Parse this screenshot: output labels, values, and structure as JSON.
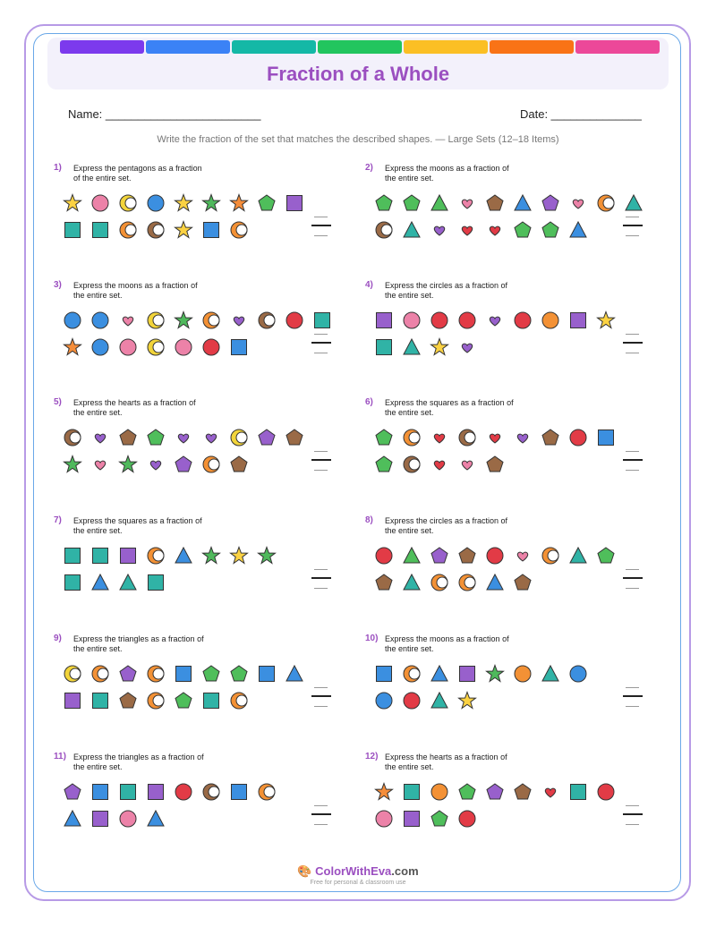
{
  "header": {
    "title": "Fraction of a Whole",
    "stripe_colors": [
      "#7c3aed",
      "#3b82f6",
      "#14b8a6",
      "#22c55e",
      "#fbbf24",
      "#f97316",
      "#ec4899"
    ]
  },
  "fields": {
    "name_label": "Name: ________________________",
    "date_label": "Date: ______________"
  },
  "instructions": "Write the fraction of the set that matches the described shapes. — Large Sets (12–18 Items)",
  "colors": {
    "star_yellow": "#fbd243",
    "star_green": "#4fb95c",
    "star_orange": "#f58d3a",
    "pink": "#ec82a8",
    "blue": "#3b8fe0",
    "red": "#e23b46",
    "orange": "#f39135",
    "yellow": "#f2d43a",
    "brown": "#9a6a46",
    "teal": "#30b3a6",
    "green": "#4fbe5b",
    "purple": "#9860cc"
  },
  "problems": [
    {
      "num": "1)",
      "text": "Express the pentagons as a fraction of the entire set.",
      "row1": [
        "star:yellow",
        "circle:pink",
        "moon:yellow",
        "circle:blue",
        "star:yellow",
        "star:green",
        "star:orange",
        "pentagon:green",
        "square:purple"
      ],
      "row2": [
        "square:teal",
        "square:teal",
        "moon:orange",
        "moon:brown",
        "star:yellow",
        "square:blue",
        "moon:orange"
      ]
    },
    {
      "num": "2)",
      "text": "Express the moons as a fraction of the entire set.",
      "row1": [
        "pentagon:green",
        "pentagon:green",
        "triangle:green",
        "heart:pink",
        "pentagon:brown",
        "triangle:blue",
        "pentagon:purple",
        "heart:pink",
        "moon:orange",
        "triangle:teal"
      ],
      "row2": [
        "moon:brown",
        "triangle:teal",
        "heart:purple",
        "heart:red",
        "heart:red",
        "pentagon:green",
        "pentagon:green",
        "triangle:blue"
      ]
    },
    {
      "num": "3)",
      "text": "Express the moons as a fraction of the entire set.",
      "row1": [
        "circle:blue",
        "circle:blue",
        "heart:pink",
        "moon:yellow",
        "star:green",
        "moon:orange",
        "heart:purple",
        "moon:brown",
        "circle:red",
        "square:teal"
      ],
      "row2": [
        "star:orange",
        "circle:blue",
        "circle:pink",
        "moon:yellow",
        "circle:pink",
        "circle:red",
        "square:blue"
      ]
    },
    {
      "num": "4)",
      "text": "Express the circles as a fraction of the entire set.",
      "row1": [
        "square:purple",
        "circle:pink",
        "circle:red",
        "circle:red",
        "heart:purple",
        "circle:red",
        "circle:orange",
        "square:purple",
        "star:yellow"
      ],
      "row2": [
        "square:teal",
        "triangle:teal",
        "star:yellow",
        "heart:purple"
      ]
    },
    {
      "num": "5)",
      "text": "Express the hearts as a fraction of the entire set.",
      "row1": [
        "moon:brown",
        "heart:purple",
        "pentagon:brown",
        "pentagon:green",
        "heart:purple",
        "heart:purple",
        "moon:yellow",
        "pentagon:purple",
        "pentagon:brown"
      ],
      "row2": [
        "star:green",
        "heart:pink",
        "star:green",
        "heart:purple",
        "pentagon:purple",
        "moon:orange",
        "pentagon:brown"
      ]
    },
    {
      "num": "6)",
      "text": "Express the squares as a fraction of the entire set.",
      "row1": [
        "pentagon:green",
        "moon:orange",
        "heart:red",
        "moon:brown",
        "heart:red",
        "heart:purple",
        "pentagon:brown",
        "circle:red",
        "square:blue"
      ],
      "row2": [
        "pentagon:green",
        "moon:brown",
        "heart:red",
        "heart:pink",
        "pentagon:brown"
      ]
    },
    {
      "num": "7)",
      "text": "Express the squares as a fraction of the entire set.",
      "row1": [
        "square:teal",
        "square:teal",
        "square:purple",
        "moon:orange",
        "triangle:blue",
        "star:green",
        "star:yellow",
        "star:green"
      ],
      "row2": [
        "square:teal",
        "triangle:blue",
        "triangle:teal",
        "square:teal"
      ]
    },
    {
      "num": "8)",
      "text": "Express the circles as a fraction of the entire set.",
      "row1": [
        "circle:red",
        "triangle:green",
        "pentagon:purple",
        "pentagon:brown",
        "circle:red",
        "heart:pink",
        "moon:orange",
        "triangle:teal",
        "pentagon:green"
      ],
      "row2": [
        "pentagon:brown",
        "triangle:teal",
        "moon:orange",
        "moon:orange",
        "triangle:blue",
        "pentagon:brown"
      ]
    },
    {
      "num": "9)",
      "text": "Express the triangles as a fraction of the entire set.",
      "row1": [
        "moon:yellow",
        "moon:orange",
        "pentagon:purple",
        "moon:orange",
        "square:blue",
        "pentagon:green",
        "pentagon:green",
        "square:blue",
        "triangle:blue"
      ],
      "row2": [
        "square:purple",
        "square:teal",
        "pentagon:brown",
        "moon:orange",
        "pentagon:green",
        "square:teal",
        "moon:orange"
      ]
    },
    {
      "num": "10)",
      "text": "Express the moons as a fraction of the entire set.",
      "row1": [
        "square:blue",
        "moon:orange",
        "triangle:blue",
        "square:purple",
        "star:green",
        "circle:orange",
        "triangle:teal",
        "circle:blue"
      ],
      "row2": [
        "circle:blue",
        "circle:red",
        "triangle:teal",
        "star:yellow"
      ]
    },
    {
      "num": "11)",
      "text": "Express the triangles as a fraction of the entire set.",
      "row1": [
        "pentagon:purple",
        "square:blue",
        "square:teal",
        "square:purple",
        "circle:red",
        "moon:brown",
        "square:blue",
        "moon:orange"
      ],
      "row2": [
        "triangle:blue",
        "square:purple",
        "circle:pink",
        "triangle:blue"
      ]
    },
    {
      "num": "12)",
      "text": "Express the hearts as a fraction of the entire set.",
      "row1": [
        "star:orange",
        "square:teal",
        "circle:orange",
        "pentagon:green",
        "pentagon:purple",
        "pentagon:brown",
        "heart:red",
        "square:teal",
        "circle:red"
      ],
      "row2": [
        "circle:pink",
        "square:purple",
        "pentagon:green",
        "circle:red"
      ]
    }
  ],
  "footer": {
    "brand_part1": "ColorWith",
    "brand_part2": "Eva",
    "brand_part3": ".com",
    "tagline": "Free for personal & classroom use",
    "logo_icon": "palette-icon"
  }
}
